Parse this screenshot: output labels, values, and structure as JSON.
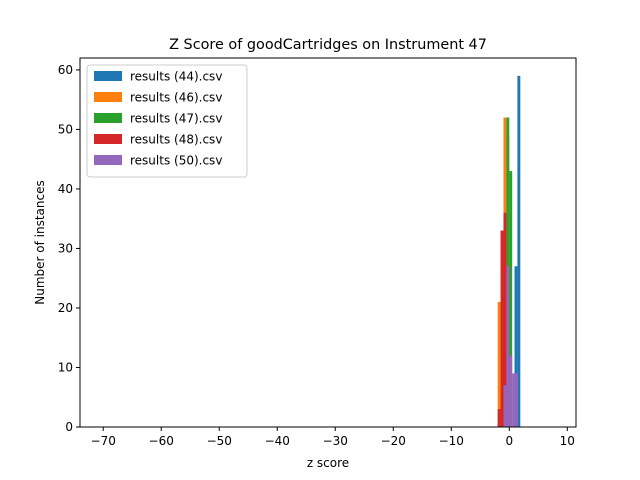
{
  "chart_data": {
    "type": "bar",
    "title": "Z Score of goodCartridges on Instrument 47",
    "xlabel": "z score",
    "ylabel": "Number of instances",
    "xlim": [
      -74,
      11.5
    ],
    "ylim": [
      0,
      62
    ],
    "xticks": [
      -70,
      -60,
      -50,
      -40,
      -30,
      -20,
      -10,
      0,
      10
    ],
    "yticks": [
      0,
      10,
      20,
      30,
      40,
      50,
      60
    ],
    "grid": false,
    "legend_position": "top-left",
    "series": [
      {
        "name": "results (44).csv",
        "color": "#1f77b4",
        "bins": [
          {
            "x0": 0.9,
            "x1": 1.4,
            "y": 27
          },
          {
            "x0": 1.4,
            "x1": 1.9,
            "y": 59
          }
        ]
      },
      {
        "name": "results (46).csv",
        "color": "#ff7f0e",
        "bins": [
          {
            "x0": -2.0,
            "x1": -1.5,
            "y": 21
          },
          {
            "x0": -1.5,
            "x1": -1.0,
            "y": 33
          },
          {
            "x0": -1.0,
            "x1": -0.5,
            "y": 52
          },
          {
            "x0": -0.5,
            "x1": 0.0,
            "y": 49
          }
        ]
      },
      {
        "name": "results (47).csv",
        "color": "#2ca02c",
        "bins": [
          {
            "x0": -0.5,
            "x1": 0.0,
            "y": 52
          },
          {
            "x0": 0.0,
            "x1": 0.5,
            "y": 43
          }
        ]
      },
      {
        "name": "results (48).csv",
        "color": "#d62728",
        "bins": [
          {
            "x0": -2.0,
            "x1": -1.5,
            "y": 3
          },
          {
            "x0": -1.5,
            "x1": -1.0,
            "y": 33
          },
          {
            "x0": -1.0,
            "x1": -0.5,
            "y": 36
          },
          {
            "x0": -0.5,
            "x1": 0.0,
            "y": 27
          }
        ]
      },
      {
        "name": "results (50).csv",
        "color": "#9467bd",
        "bins": [
          {
            "x0": -1.0,
            "x1": -0.5,
            "y": 7
          },
          {
            "x0": -0.5,
            "x1": 0.0,
            "y": 27
          },
          {
            "x0": 0.0,
            "x1": 0.5,
            "y": 12
          },
          {
            "x0": 0.5,
            "x1": 1.0,
            "y": 9
          },
          {
            "x0": 1.0,
            "x1": 1.5,
            "y": 9
          }
        ]
      }
    ]
  }
}
